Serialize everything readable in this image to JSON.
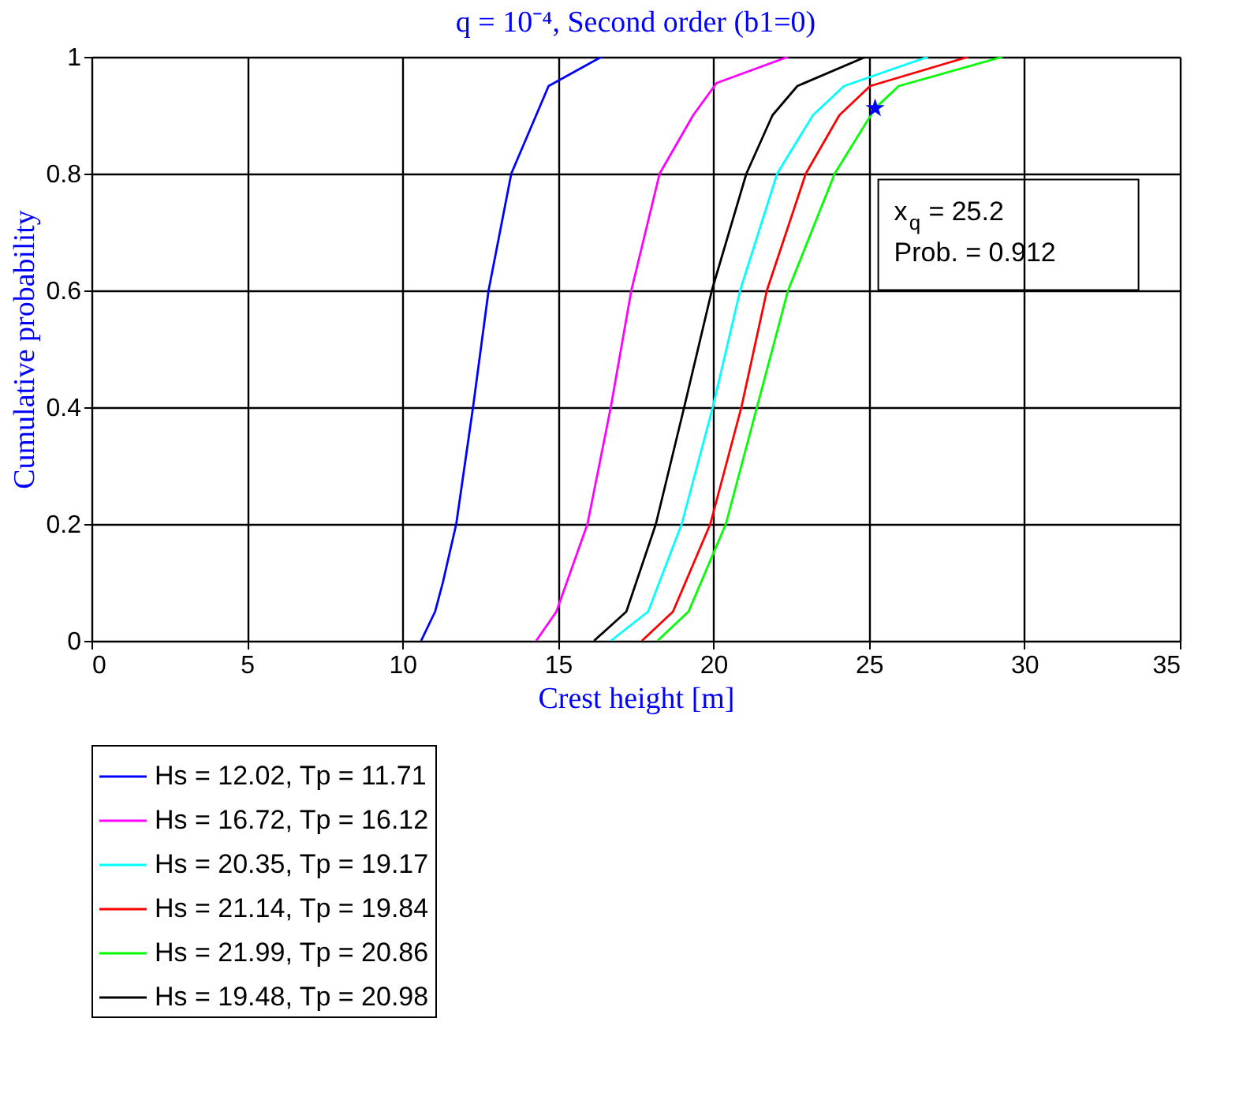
{
  "chart_data": {
    "type": "line",
    "title": "q = 10⁻⁴, Second order (b1=0)",
    "xlabel": "Crest height [m]",
    "ylabel": "Cumulative probability",
    "xlim": [
      0,
      35
    ],
    "xticks": [
      0,
      5,
      10,
      15,
      20,
      25,
      30,
      35
    ],
    "ylim": [
      0,
      1
    ],
    "yticks": [
      0,
      0.2,
      0.4,
      0.6,
      0.8,
      1
    ],
    "grid": true,
    "legend": "bottom",
    "series": [
      {
        "name": "Hs = 12.02, Tp = 11.71",
        "color": "#0000ff",
        "x": [
          10.6,
          11.05,
          11.3,
          11.73,
          12.27,
          12.77,
          13.5,
          14.7,
          16.4
        ],
        "values": [
          0,
          0.05,
          0.1,
          0.2,
          0.4,
          0.6,
          0.8,
          0.95,
          1
        ]
      },
      {
        "name": "Hs = 16.72, Tp = 16.12",
        "color": "#ff00ff",
        "x": [
          14.3,
          14.95,
          15.95,
          16.7,
          17.36,
          18.27,
          19.35,
          20.1,
          22.4
        ],
        "values": [
          0,
          0.05,
          0.2,
          0.4,
          0.6,
          0.8,
          0.9,
          0.955,
          1
        ]
      },
      {
        "name": "Hs = 20.35, Tp = 19.17",
        "color": "#00ffff",
        "x": [
          16.7,
          17.9,
          18.98,
          19.98,
          20.86,
          22.05,
          23.2,
          24.2,
          26.9
        ],
        "values": [
          0,
          0.05,
          0.2,
          0.4,
          0.6,
          0.8,
          0.9,
          0.95,
          1
        ]
      },
      {
        "name": "Hs = 21.14, Tp = 19.84",
        "color": "#ff0000",
        "x": [
          17.7,
          18.7,
          19.9,
          20.9,
          21.72,
          22.97,
          24.05,
          25.04,
          28.2
        ],
        "values": [
          0,
          0.05,
          0.2,
          0.4,
          0.6,
          0.8,
          0.9,
          0.95,
          1
        ]
      },
      {
        "name": "Hs = 21.99, Tp = 20.86",
        "color": "#00ff00",
        "x": [
          18.2,
          19.2,
          20.4,
          21.4,
          22.4,
          23.9,
          25.2,
          25.96,
          29.3
        ],
        "values": [
          0,
          0.05,
          0.2,
          0.4,
          0.6,
          0.8,
          0.912,
          0.95,
          1
        ]
      },
      {
        "name": "Hs = 19.48, Tp = 20.98",
        "color": "#000000",
        "x": [
          16.16,
          17.2,
          18.15,
          19.06,
          19.95,
          21.06,
          21.9,
          22.7,
          24.9
        ],
        "values": [
          0,
          0.05,
          0.2,
          0.4,
          0.6,
          0.8,
          0.9,
          0.95,
          1
        ]
      },
      {
        "type": "scatter",
        "marker": "star",
        "color": "#0000ff",
        "x": [
          25.2
        ],
        "values": [
          0.912
        ]
      }
    ],
    "annotations": [
      "x$_{q}$ = 25.2",
      "Prob. = 0.912"
    ]
  }
}
